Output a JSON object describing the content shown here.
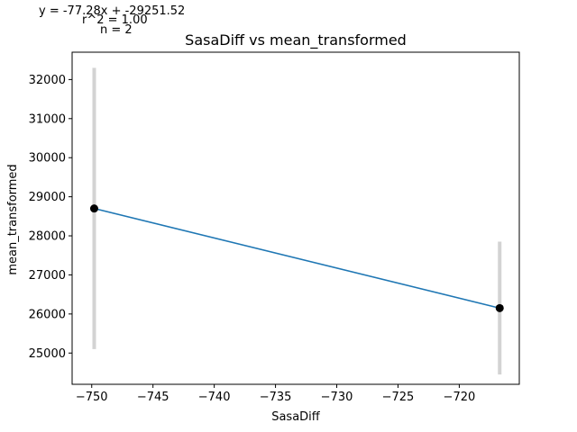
{
  "chart_data": {
    "type": "line",
    "title": "SasaDiff vs mean_transformed",
    "xlabel": "SasaDiff",
    "ylabel": "mean_transformed",
    "xlim": [
      -751.6,
      -715.1
    ],
    "ylim": [
      24200,
      32700
    ],
    "x_ticks": [
      -750,
      -745,
      -740,
      -735,
      -730,
      -725,
      -720
    ],
    "x_tick_labels": [
      "−750",
      "−745",
      "−740",
      "−735",
      "−730",
      "−725",
      "−720"
    ],
    "y_ticks": [
      25000,
      26000,
      27000,
      28000,
      29000,
      30000,
      31000,
      32000
    ],
    "y_tick_labels": [
      "25000",
      "26000",
      "27000",
      "28000",
      "29000",
      "30000",
      "31000",
      "32000"
    ],
    "grid": false,
    "points": [
      {
        "x": -749.8,
        "y": 28700,
        "error_low": 25100,
        "error_high": 32300
      },
      {
        "x": -716.7,
        "y": 26150,
        "error_low": 24450,
        "error_high": 27850
      }
    ],
    "fit_line": {
      "x": [
        -749.8,
        -716.7
      ],
      "y": [
        28700,
        26150
      ]
    },
    "annotation": [
      "y = -77.28x + -29251.52",
      "r^2 = 1.00",
      "n = 2"
    ],
    "colors": {
      "line": "#1f77b4",
      "errorbar": "#d3d3d3",
      "marker": "#000000"
    }
  }
}
